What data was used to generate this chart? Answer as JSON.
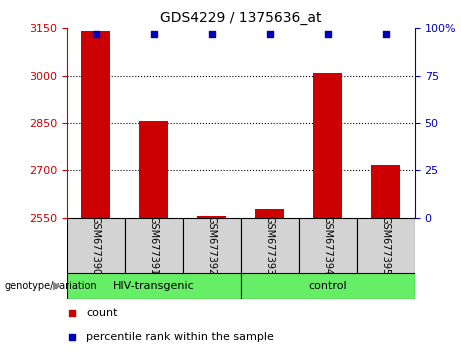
{
  "title": "GDS4229 / 1375636_at",
  "samples": [
    "GSM677390",
    "GSM677391",
    "GSM677392",
    "GSM677393",
    "GSM677394",
    "GSM677395"
  ],
  "counts": [
    3140,
    2857,
    2557,
    2577,
    3010,
    2718
  ],
  "percentiles": [
    97,
    97,
    97,
    97,
    97,
    97
  ],
  "ylim_left": [
    2550,
    3150
  ],
  "ylim_right": [
    0,
    100
  ],
  "yticks_left": [
    2550,
    2700,
    2850,
    3000,
    3150
  ],
  "yticks_right": [
    0,
    25,
    50,
    75,
    100
  ],
  "ytick_labels_right": [
    "0",
    "25",
    "50",
    "75",
    "100%"
  ],
  "bar_color": "#CC0000",
  "dot_color": "#0000BB",
  "bar_width": 0.5,
  "axis_left_color": "#CC0000",
  "axis_right_color": "#0000BB",
  "plot_bg": "#FFFFFF",
  "sample_box_color": "#D3D3D3",
  "group_area_color": "#66EE66",
  "genotype_label": "genotype/variation",
  "hiv_label": "HIV-transgenic",
  "control_label": "control",
  "legend_items": [
    {
      "label": "count",
      "color": "#CC0000"
    },
    {
      "label": "percentile rank within the sample",
      "color": "#0000BB"
    }
  ]
}
